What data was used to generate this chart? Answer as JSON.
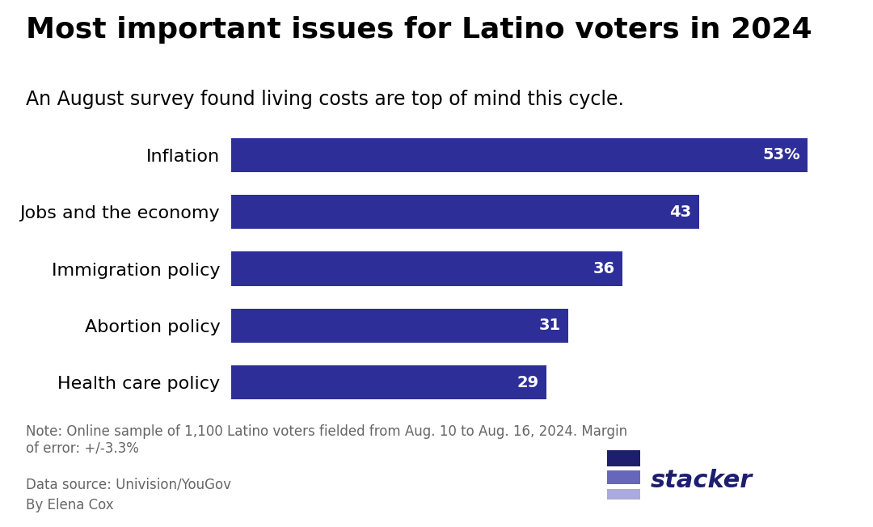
{
  "title": "Most important issues for Latino voters in 2024",
  "subtitle": "An August survey found living costs are top of mind this cycle.",
  "categories": [
    "Inflation",
    "Jobs and the economy",
    "Immigration policy",
    "Abortion policy",
    "Health care policy"
  ],
  "values": [
    53,
    43,
    36,
    31,
    29
  ],
  "bar_color": "#2e2e99",
  "label_color": "#ffffff",
  "title_color": "#000000",
  "subtitle_color": "#000000",
  "note_text": "Note: Online sample of 1,100 Latino voters fielded from Aug. 10 to Aug. 16, 2024. Margin\nof error: +/-3.3%",
  "source_text": "Data source: Univision/YouGov",
  "author_text": "By Elena Cox",
  "stacker_text": "stacker",
  "background_color": "#ffffff",
  "xlim": [
    0,
    57
  ],
  "bar_height": 0.6,
  "label_fontsize": 14,
  "category_fontsize": 16,
  "title_fontsize": 26,
  "subtitle_fontsize": 17,
  "note_fontsize": 12,
  "stacker_color": "#1e1e6e",
  "stacker_rect_colors": [
    "#1e1e6e",
    "#6666bb",
    "#aaaadd"
  ],
  "note_color": "#666666"
}
